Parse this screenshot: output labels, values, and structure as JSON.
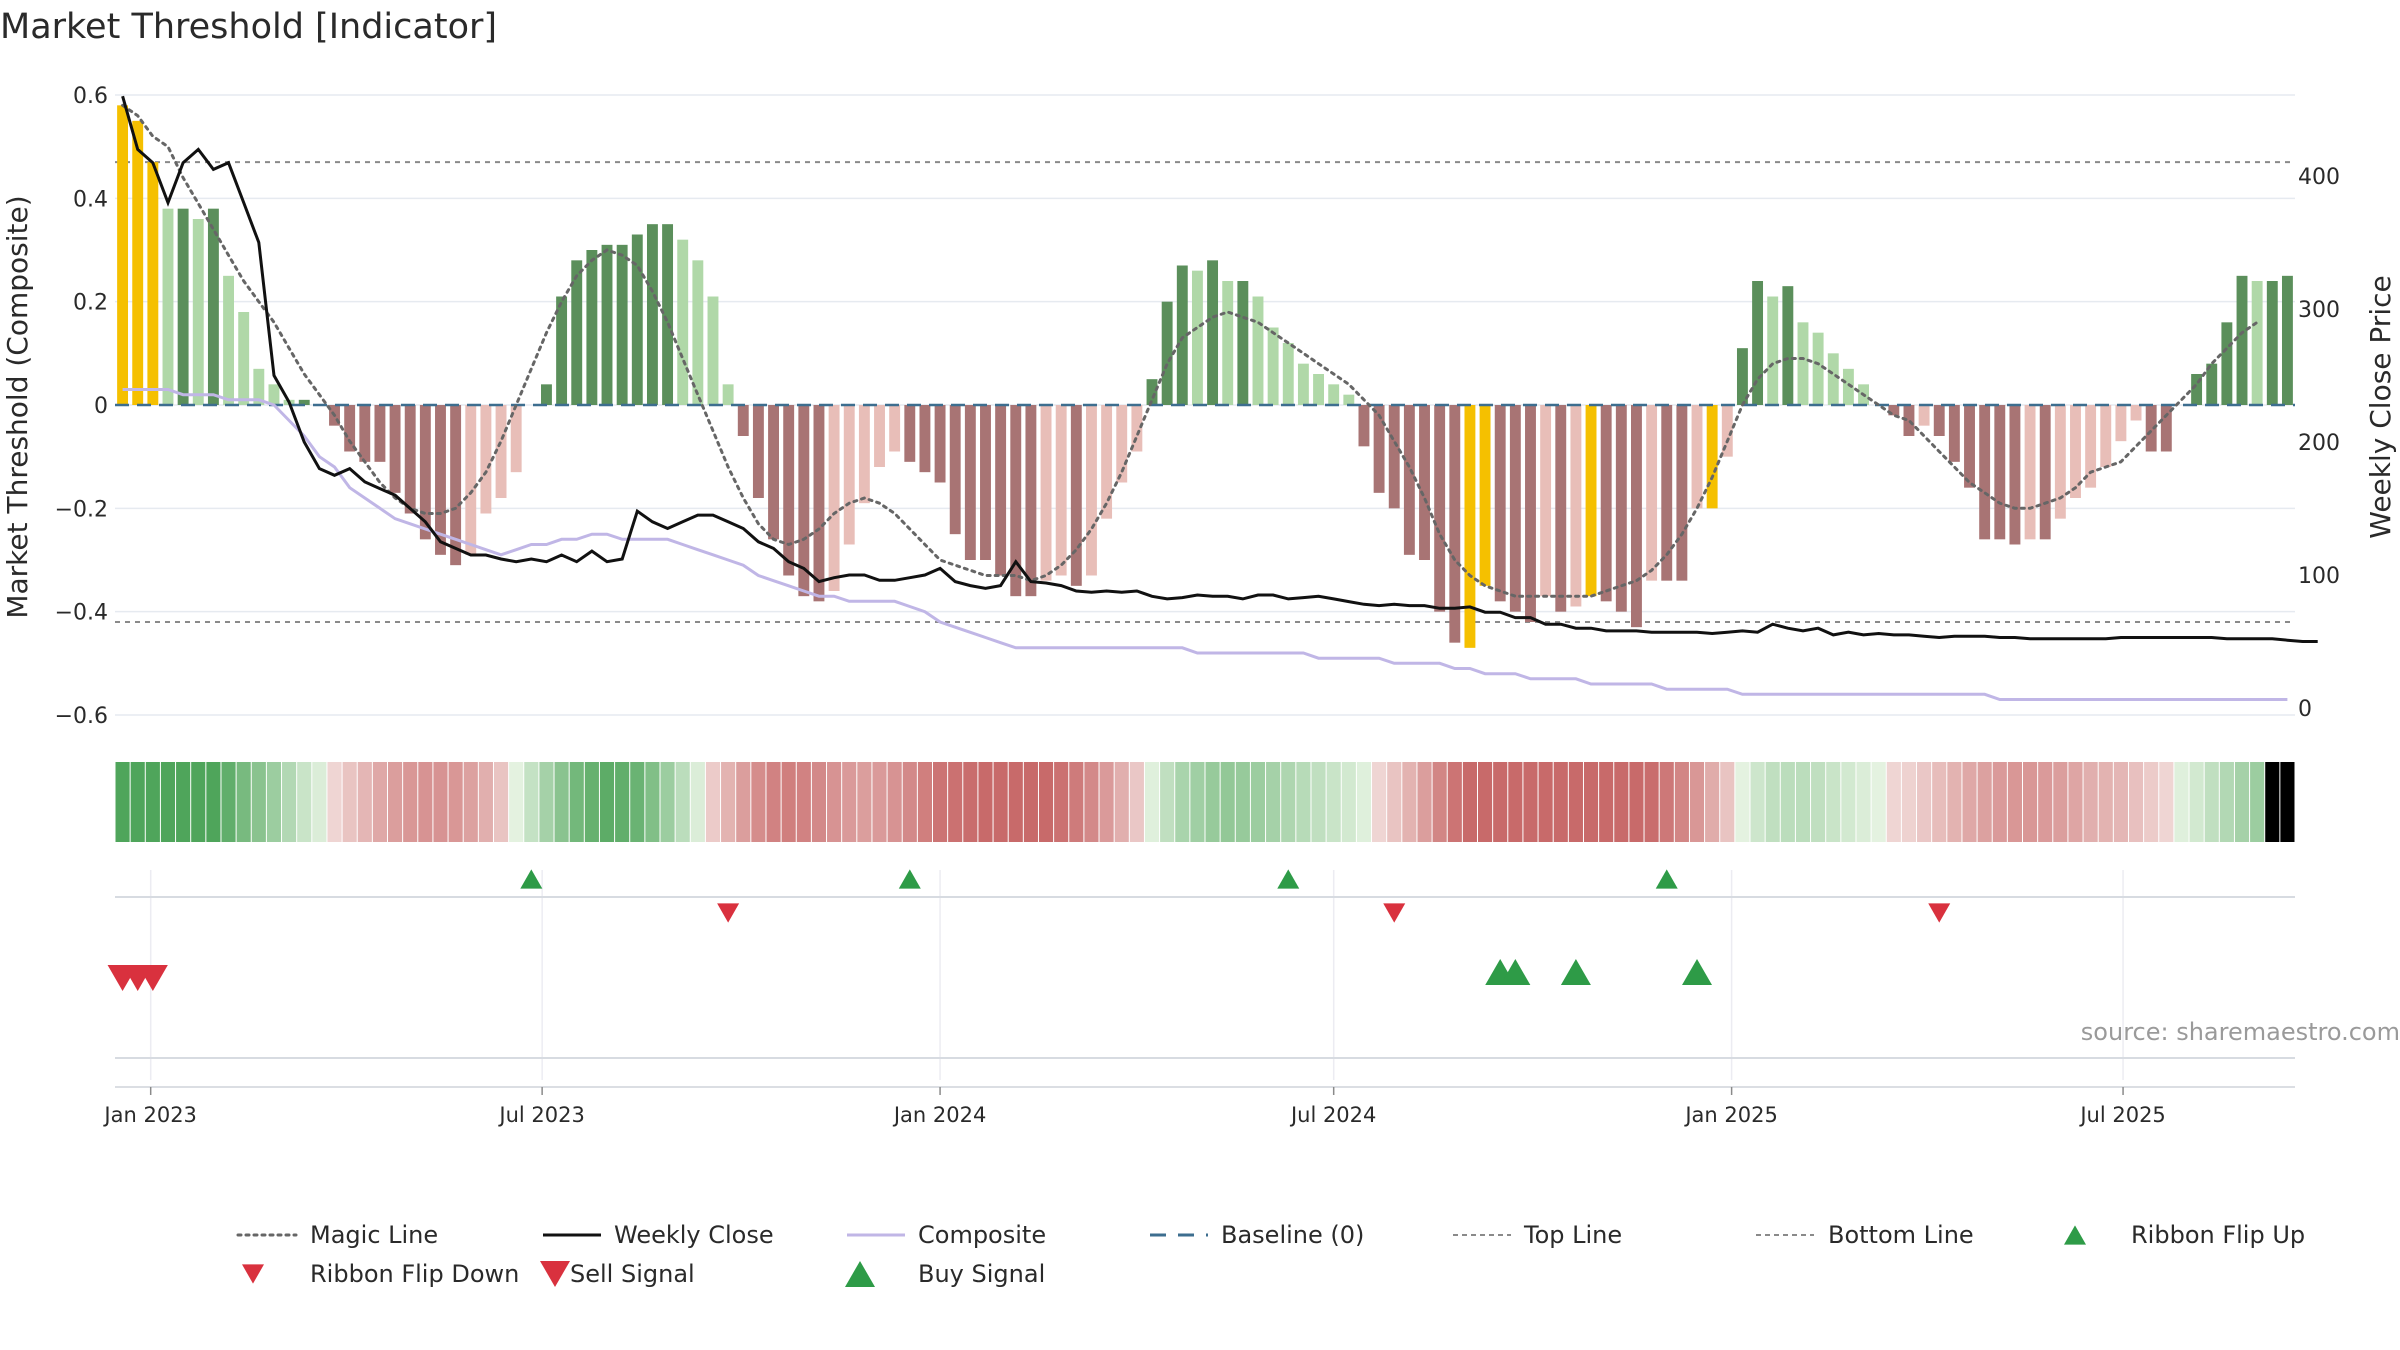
{
  "title": "Market Threshold [Indicator]",
  "source": "source: sharemaestro.com",
  "chart_data": {
    "type": "bar",
    "title": "Market Threshold [Indicator]",
    "ylabel": "Market Threshold (Composite)",
    "y2label": "Weekly Close Price",
    "ylim": [
      -0.6,
      0.6
    ],
    "y2lim": [
      0,
      430
    ],
    "yticks": [
      "0.6",
      "0.4",
      "0.2",
      "0",
      "−0.2",
      "−0.4",
      "−0.6"
    ],
    "y2ticks": [
      "400",
      "300",
      "200",
      "100",
      "0"
    ],
    "xtick_labels": [
      "Jan 2023",
      "Jul 2023",
      "Jan 2024",
      "Jul 2024",
      "Jan 2025",
      "Jul 2025"
    ],
    "x_start": "2022-12-19",
    "top_line": 0.47,
    "bottom_line": -0.42,
    "composite_bars": [
      0.58,
      0.55,
      0.47,
      0.38,
      0.38,
      0.36,
      0.38,
      0.25,
      0.18,
      0.07,
      0.04,
      0.01,
      0.01,
      0.0,
      -0.04,
      -0.09,
      -0.11,
      -0.11,
      -0.17,
      -0.21,
      -0.26,
      -0.29,
      -0.31,
      -0.29,
      -0.21,
      -0.18,
      -0.13,
      0.0,
      0.04,
      0.21,
      0.28,
      0.3,
      0.31,
      0.31,
      0.33,
      0.35,
      0.35,
      0.32,
      0.28,
      0.21,
      0.04,
      -0.06,
      -0.18,
      -0.26,
      -0.33,
      -0.37,
      -0.38,
      -0.36,
      -0.27,
      -0.19,
      -0.12,
      -0.09,
      -0.11,
      -0.13,
      -0.15,
      -0.25,
      -0.3,
      -0.3,
      -0.33,
      -0.37,
      -0.37,
      -0.34,
      -0.33,
      -0.35,
      -0.33,
      -0.22,
      -0.15,
      -0.09,
      0.05,
      0.2,
      0.27,
      0.26,
      0.28,
      0.24,
      0.24,
      0.21,
      0.15,
      0.12,
      0.08,
      0.06,
      0.04,
      0.02,
      -0.08,
      -0.17,
      -0.2,
      -0.29,
      -0.3,
      -0.4,
      -0.46,
      -0.47,
      -0.35,
      -0.38,
      -0.4,
      -0.42,
      -0.37,
      -0.4,
      -0.39,
      -0.37,
      -0.38,
      -0.4,
      -0.43,
      -0.34,
      -0.34,
      -0.34,
      -0.2,
      -0.2,
      -0.1,
      0.11,
      0.24,
      0.21,
      0.23,
      0.16,
      0.14,
      0.1,
      0.07,
      0.04,
      0.0,
      -0.02,
      -0.06,
      -0.04,
      -0.06,
      -0.11,
      -0.16,
      -0.26,
      -0.26,
      -0.27,
      -0.26,
      -0.26,
      -0.22,
      -0.18,
      -0.16,
      -0.12,
      -0.07,
      -0.03,
      -0.09,
      -0.09,
      0.0,
      0.06,
      0.08,
      0.16,
      0.25,
      0.24,
      0.24,
      0.25
    ],
    "highlighted_bars": [
      0,
      1,
      2,
      89,
      90,
      97,
      105
    ],
    "weekly_close": [
      460,
      420,
      410,
      380,
      410,
      420,
      405,
      410,
      380,
      350,
      250,
      230,
      200,
      180,
      175,
      180,
      170,
      165,
      160,
      150,
      140,
      125,
      120,
      115,
      115,
      112,
      110,
      112,
      110,
      115,
      110,
      118,
      110,
      112,
      148,
      140,
      135,
      140,
      145,
      145,
      140,
      135,
      125,
      120,
      110,
      105,
      95,
      98,
      100,
      100,
      96,
      96,
      98,
      100,
      105,
      95,
      92,
      90,
      92,
      110,
      95,
      94,
      92,
      88,
      87,
      88,
      87,
      88,
      84,
      82,
      83,
      85,
      84,
      84,
      82,
      85,
      85,
      82,
      83,
      84,
      82,
      80,
      78,
      77,
      78,
      77,
      77,
      75,
      75,
      76,
      72,
      72,
      68,
      68,
      63,
      63,
      60,
      60,
      58,
      58,
      58,
      57,
      57,
      57,
      57,
      56,
      57,
      58,
      57,
      63,
      60,
      58,
      60,
      55,
      57,
      55,
      56,
      55,
      55,
      54,
      53,
      54,
      54,
      54,
      53,
      53,
      52,
      52,
      52,
      52,
      52,
      52,
      53,
      53,
      53,
      53,
      53,
      53,
      53,
      52,
      52,
      52,
      52,
      51,
      50,
      50
    ],
    "composite_line": [
      0.03,
      0.03,
      0.03,
      0.03,
      0.02,
      0.02,
      0.02,
      0.01,
      0.01,
      0.01,
      0.0,
      -0.03,
      -0.06,
      -0.1,
      -0.12,
      -0.16,
      -0.18,
      -0.2,
      -0.22,
      -0.23,
      -0.24,
      -0.25,
      -0.26,
      -0.27,
      -0.28,
      -0.29,
      -0.28,
      -0.27,
      -0.27,
      -0.26,
      -0.26,
      -0.25,
      -0.25,
      -0.26,
      -0.26,
      -0.26,
      -0.26,
      -0.27,
      -0.28,
      -0.29,
      -0.3,
      -0.31,
      -0.33,
      -0.34,
      -0.35,
      -0.36,
      -0.37,
      -0.37,
      -0.38,
      -0.38,
      -0.38,
      -0.38,
      -0.39,
      -0.4,
      -0.42,
      -0.43,
      -0.44,
      -0.45,
      -0.46,
      -0.47,
      -0.47,
      -0.47,
      -0.47,
      -0.47,
      -0.47,
      -0.47,
      -0.47,
      -0.47,
      -0.47,
      -0.47,
      -0.47,
      -0.48,
      -0.48,
      -0.48,
      -0.48,
      -0.48,
      -0.48,
      -0.48,
      -0.48,
      -0.49,
      -0.49,
      -0.49,
      -0.49,
      -0.49,
      -0.5,
      -0.5,
      -0.5,
      -0.5,
      -0.51,
      -0.51,
      -0.52,
      -0.52,
      -0.52,
      -0.53,
      -0.53,
      -0.53,
      -0.53,
      -0.54,
      -0.54,
      -0.54,
      -0.54,
      -0.54,
      -0.55,
      -0.55,
      -0.55,
      -0.55,
      -0.55,
      -0.56,
      -0.56,
      -0.56,
      -0.56,
      -0.56,
      -0.56,
      -0.56,
      -0.56,
      -0.56,
      -0.56,
      -0.56,
      -0.56,
      -0.56,
      -0.56,
      -0.56,
      -0.56,
      -0.56,
      -0.57,
      -0.57,
      -0.57,
      -0.57,
      -0.57,
      -0.57,
      -0.57,
      -0.57,
      -0.57,
      -0.57,
      -0.57,
      -0.57,
      -0.57,
      -0.57,
      -0.57,
      -0.57,
      -0.57,
      -0.57,
      -0.57,
      -0.57
    ],
    "magic_line": [
      0.58,
      0.56,
      0.52,
      0.5,
      0.44,
      0.39,
      0.34,
      0.29,
      0.24,
      0.2,
      0.16,
      0.11,
      0.06,
      0.02,
      -0.02,
      -0.07,
      -0.11,
      -0.15,
      -0.18,
      -0.2,
      -0.21,
      -0.21,
      -0.2,
      -0.17,
      -0.13,
      -0.07,
      0.0,
      0.07,
      0.14,
      0.2,
      0.25,
      0.28,
      0.3,
      0.29,
      0.27,
      0.22,
      0.16,
      0.09,
      0.02,
      -0.05,
      -0.12,
      -0.18,
      -0.23,
      -0.26,
      -0.27,
      -0.26,
      -0.24,
      -0.21,
      -0.19,
      -0.18,
      -0.19,
      -0.21,
      -0.24,
      -0.27,
      -0.3,
      -0.31,
      -0.32,
      -0.33,
      -0.33,
      -0.33,
      -0.34,
      -0.33,
      -0.31,
      -0.28,
      -0.24,
      -0.19,
      -0.13,
      -0.06,
      0.01,
      0.08,
      0.13,
      0.15,
      0.17,
      0.18,
      0.17,
      0.16,
      0.14,
      0.12,
      0.1,
      0.08,
      0.06,
      0.04,
      0.01,
      -0.02,
      -0.07,
      -0.12,
      -0.18,
      -0.25,
      -0.3,
      -0.33,
      -0.35,
      -0.36,
      -0.37,
      -0.37,
      -0.37,
      -0.37,
      -0.37,
      -0.37,
      -0.36,
      -0.35,
      -0.34,
      -0.32,
      -0.29,
      -0.25,
      -0.2,
      -0.14,
      -0.07,
      0.0,
      0.05,
      0.08,
      0.09,
      0.09,
      0.08,
      0.06,
      0.04,
      0.02,
      0.0,
      -0.02,
      -0.03,
      -0.06,
      -0.09,
      -0.12,
      -0.15,
      -0.17,
      -0.19,
      -0.2,
      -0.2,
      -0.19,
      -0.18,
      -0.16,
      -0.13,
      -0.12,
      -0.11,
      -0.08,
      -0.05,
      -0.02,
      0.01,
      0.04,
      0.08,
      0.11,
      0.14,
      0.16
    ],
    "ribbon_flip_up_weeks": [
      27,
      52,
      77,
      102
    ],
    "ribbon_flip_down_weeks": [
      40,
      84,
      120
    ],
    "buy_signal_weeks": [
      91,
      92,
      96,
      104
    ],
    "sell_signal_weeks": [
      0,
      1,
      2
    ],
    "legend": [
      "Magic Line",
      "Weekly Close",
      "Composite",
      "Baseline (0)",
      "Top Line",
      "Bottom Line",
      "Ribbon Flip Up",
      "Ribbon Flip Down",
      "Sell Signal",
      "Buy Signal"
    ],
    "legend_placement": "bottom",
    "grid": true
  },
  "colors": {
    "strong_pos": "#5b8f5b",
    "weak_pos": "#b0d8a8",
    "strong_neg": "#a87474",
    "weak_neg": "#e8beb8",
    "highlight": "#f5c000",
    "weekly_close": "#111111",
    "composite_line": "#c0b6e6",
    "magic_line": "#666666",
    "baseline": "#3d6e8f",
    "threshold_line": "#8a8a8a",
    "buy": "#2e9b47",
    "sell": "#d9313e",
    "ribbon_red": "#c86a6a",
    "ribbon_green": "#4fa55b"
  }
}
